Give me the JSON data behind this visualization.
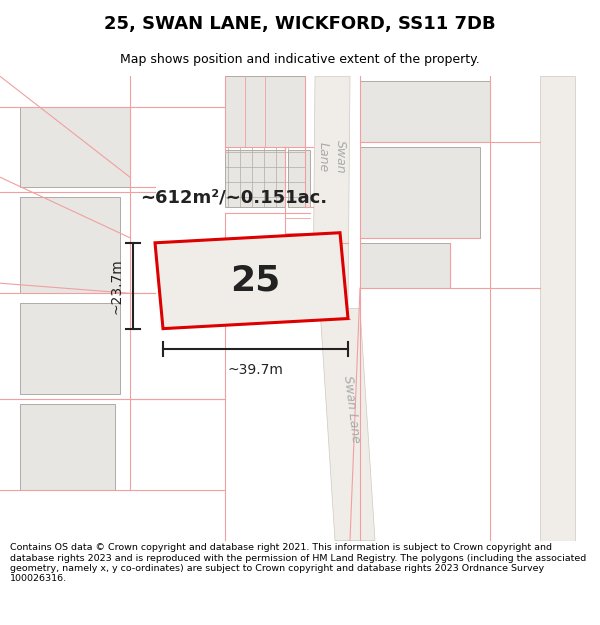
{
  "title": "25, SWAN LANE, WICKFORD, SS11 7DB",
  "subtitle": "Map shows position and indicative extent of the property.",
  "footer": "Contains OS data © Crown copyright and database right 2021. This information is subject to Crown copyright and database rights 2023 and is reproduced with the permission of HM Land Registry. The polygons (including the associated geometry, namely x, y co-ordinates) are subject to Crown copyright and database rights 2023 Ordnance Survey 100026316.",
  "area_text": "~612m²/~0.151ac.",
  "width_label": "~39.7m",
  "height_label": "~23.7m",
  "plot_number": "25",
  "map_bg": "#ffffff",
  "bldg_fill": "#e8e6e2",
  "bldg_edge": "#b0aaa4",
  "boundary_color": "#f0a0a0",
  "road_fill": "#f0ede8",
  "road_edge": "#d0c8c0",
  "plot_edge": "#dd0000",
  "plot_fill": "#f0ede8",
  "dim_color": "#222222",
  "text_color": "#222222",
  "swan_lane_color": "#aaaaaa",
  "title_fontsize": 13,
  "subtitle_fontsize": 9,
  "footer_fontsize": 6.8
}
